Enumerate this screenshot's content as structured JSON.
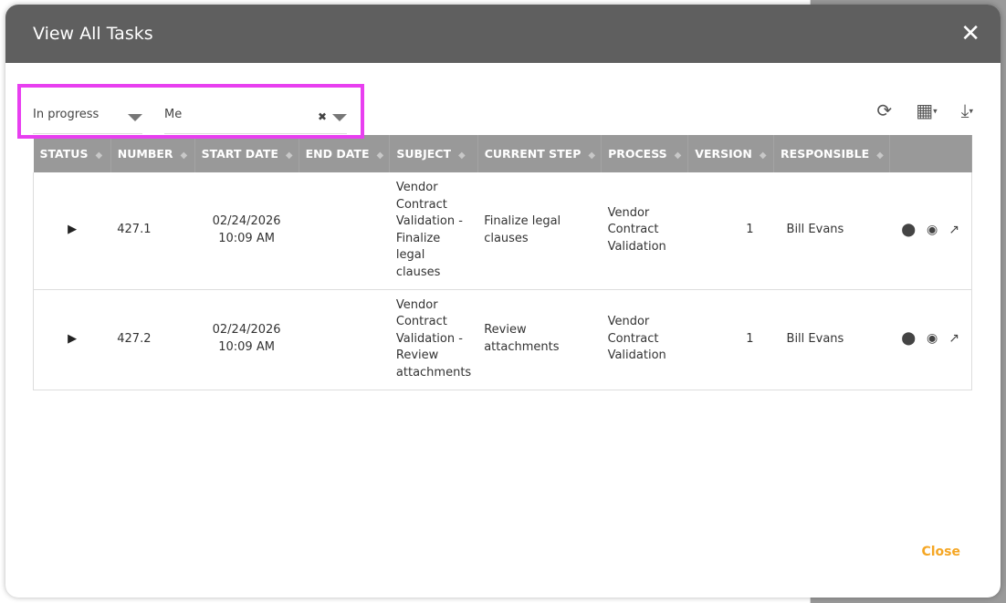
{
  "modal": {
    "title": "View All Tasks",
    "close_label": "Close"
  },
  "filters": {
    "status": "In progress",
    "assignee": "Me"
  },
  "toolbar": {
    "icons": [
      "refresh-icon",
      "columns-grid-icon",
      "download-icon"
    ]
  },
  "table": {
    "headers": [
      "STATUS",
      "NUMBER",
      "START DATE",
      "END DATE",
      "SUBJECT",
      "CURRENT STEP",
      "PROCESS",
      "VERSION",
      "RESPONSIBLE"
    ],
    "rows": [
      {
        "number": "427.1",
        "start_date": "02/24/2026",
        "start_time": "10:09 AM",
        "end_date": "",
        "subject": "Vendor Contract Validation - Finalize legal clauses",
        "current_step": "Finalize legal clauses",
        "process": "Vendor Contract Validation",
        "version": "1",
        "responsible": "Bill Evans"
      },
      {
        "number": "427.2",
        "start_date": "02/24/2026",
        "start_time": "10:09 AM",
        "end_date": "",
        "subject": "Vendor Contract Validation - Review attachments",
        "current_step": "Review attachments",
        "process": "Vendor Contract Validation",
        "version": "1",
        "responsible": "Bill Evans"
      }
    ]
  },
  "colors": {
    "header": "#5f5f5f",
    "table_header": "#999999",
    "highlight": "#e83ff0",
    "close": "#f5a623"
  }
}
